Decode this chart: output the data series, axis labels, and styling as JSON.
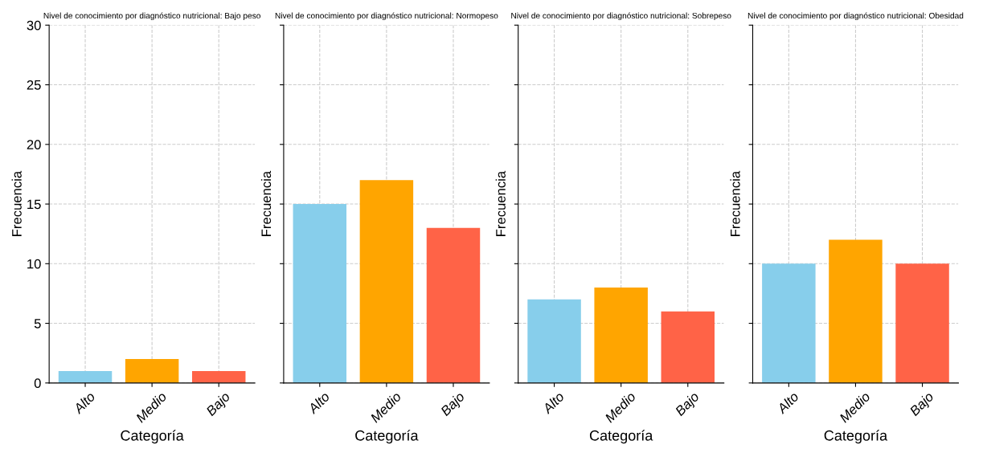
{
  "chart_data": [
    {
      "type": "bar",
      "title": "Nivel de conocimiento por diagnóstico nutricional: Bajo peso",
      "xlabel": "Categoría",
      "ylabel": "Frecuencia",
      "categories": [
        "Alto",
        "Medio",
        "Bajo"
      ],
      "values": [
        1,
        2,
        1
      ],
      "colors": [
        "#87ceeb",
        "#ffa500",
        "#ff6347"
      ],
      "ylim": [
        0,
        30
      ],
      "yticks": [
        0,
        5,
        10,
        15,
        20,
        25,
        30
      ],
      "grid": true
    },
    {
      "type": "bar",
      "title": "Nivel de conocimiento por diagnóstico nutricional: Normopeso",
      "xlabel": "Categoría",
      "ylabel": "Frecuencia",
      "categories": [
        "Alto",
        "Medio",
        "Bajo"
      ],
      "values": [
        15,
        17,
        13
      ],
      "colors": [
        "#87ceeb",
        "#ffa500",
        "#ff6347"
      ],
      "ylim": [
        0,
        30
      ],
      "yticks": [
        0,
        5,
        10,
        15,
        20,
        25,
        30
      ],
      "grid": true,
      "tick_labels": "x"
    },
    {
      "type": "bar",
      "title": "Nivel de conocimiento por diagnóstico nutricional: Sobrepeso",
      "xlabel": "Categoría",
      "ylabel": "Frecuencia",
      "categories": [
        "Alto",
        "Medio",
        "Bajo"
      ],
      "values": [
        7,
        8,
        6
      ],
      "colors": [
        "#87ceeb",
        "#ffa500",
        "#ff6347"
      ],
      "ylim": [
        0,
        30
      ],
      "yticks": [
        0,
        5,
        10,
        15,
        20,
        25,
        30
      ],
      "grid": true,
      "tick_labels": "x"
    },
    {
      "type": "bar",
      "title": "Nivel de conocimiento por diagnóstico nutricional: Obesidad",
      "xlabel": "Categoría",
      "ylabel": "Frecuencia",
      "categories": [
        "Alto",
        "Medio",
        "Bajo"
      ],
      "values": [
        10,
        12,
        10
      ],
      "colors": [
        "#87ceeb",
        "#ffa500",
        "#ff6347"
      ],
      "ylim": [
        0,
        30
      ],
      "yticks": [
        0,
        5,
        10,
        15,
        20,
        25,
        30
      ],
      "grid": true,
      "tick_labels": "x"
    }
  ]
}
